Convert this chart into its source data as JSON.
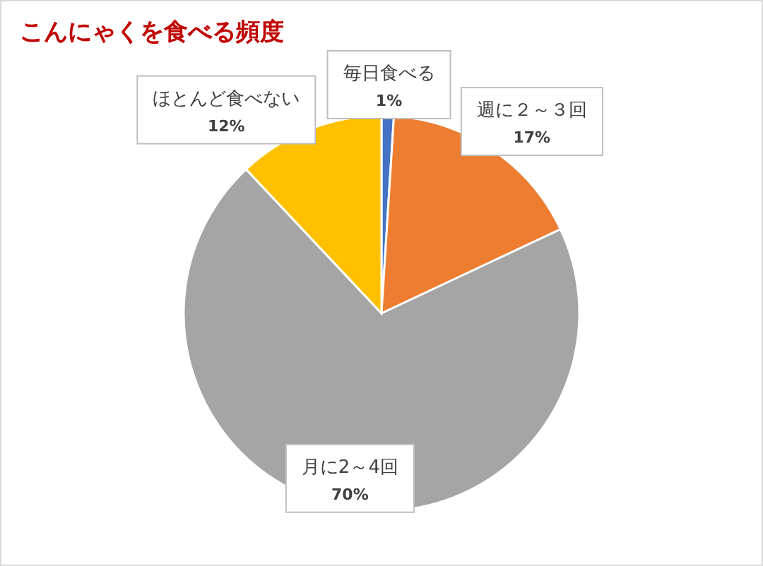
{
  "chart_data": {
    "type": "pie",
    "title": "こんにゃくを食べる頻度",
    "categories": [
      "毎日食べる",
      "週に２～３回",
      "月に2～4回",
      "ほとんど食べない"
    ],
    "values": [
      1,
      17,
      70,
      12
    ],
    "value_labels": [
      "1%",
      "17%",
      "70%",
      "12%"
    ],
    "colors": [
      "#4472c4",
      "#ed7d31",
      "#a5a5a5",
      "#ffc000"
    ]
  }
}
